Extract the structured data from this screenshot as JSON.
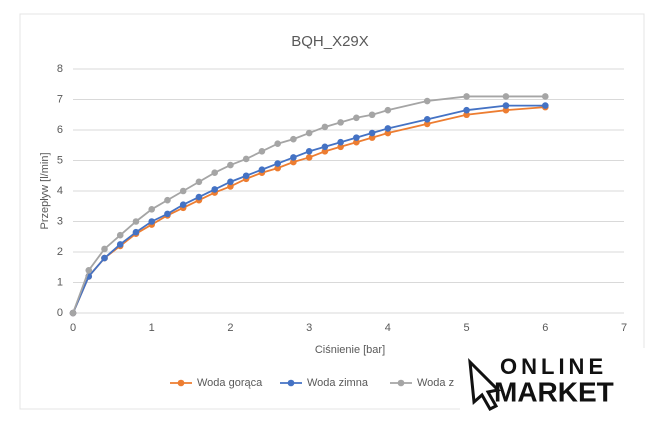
{
  "chart_data": {
    "type": "line",
    "title": "BQH_X29X",
    "x_label": "Ciśnienie [bar]",
    "y_label": "Przepływ [l/min]",
    "x": [
      0,
      0.2,
      0.4,
      0.6,
      0.8,
      1.0,
      1.2,
      1.4,
      1.6,
      1.8,
      2.0,
      2.2,
      2.4,
      2.6,
      2.8,
      3.0,
      3.2,
      3.4,
      3.6,
      3.8,
      4.0,
      4.5,
      5,
      5.5,
      6
    ],
    "series": [
      {
        "name": "Woda gorąca",
        "color": "#ed7d31",
        "values": [
          0,
          1.2,
          1.8,
          2.2,
          2.6,
          2.9,
          3.2,
          3.45,
          3.7,
          3.95,
          4.15,
          4.4,
          4.6,
          4.75,
          4.95,
          5.1,
          5.3,
          5.45,
          5.6,
          5.75,
          5.9,
          6.2,
          6.5,
          6.65,
          6.75
        ]
      },
      {
        "name": "Woda zimna",
        "color": "#4472c4",
        "values": [
          0,
          1.2,
          1.8,
          2.25,
          2.65,
          3.0,
          3.25,
          3.55,
          3.8,
          4.05,
          4.3,
          4.5,
          4.7,
          4.9,
          5.1,
          5.3,
          5.45,
          5.6,
          5.75,
          5.9,
          6.05,
          6.35,
          6.65,
          6.8,
          6.8
        ]
      },
      {
        "name": "Woda z",
        "color": "#a5a5a5",
        "values": [
          0,
          1.4,
          2.1,
          2.55,
          3.0,
          3.4,
          3.7,
          4.0,
          4.3,
          4.6,
          4.85,
          5.05,
          5.3,
          5.55,
          5.7,
          5.9,
          6.1,
          6.25,
          6.4,
          6.5,
          6.65,
          6.95,
          7.1,
          7.1,
          7.1
        ]
      }
    ],
    "xlim": [
      0,
      7
    ],
    "xticks": [
      0,
      1,
      2,
      3,
      4,
      5,
      6,
      7
    ],
    "ylim": [
      0,
      8
    ],
    "yticks": [
      0,
      1,
      2,
      3,
      4,
      5,
      6,
      7,
      8
    ],
    "grid": true,
    "legend": "bottom"
  },
  "logo": {
    "line1": "ONLINE",
    "line2": "MARKET"
  }
}
